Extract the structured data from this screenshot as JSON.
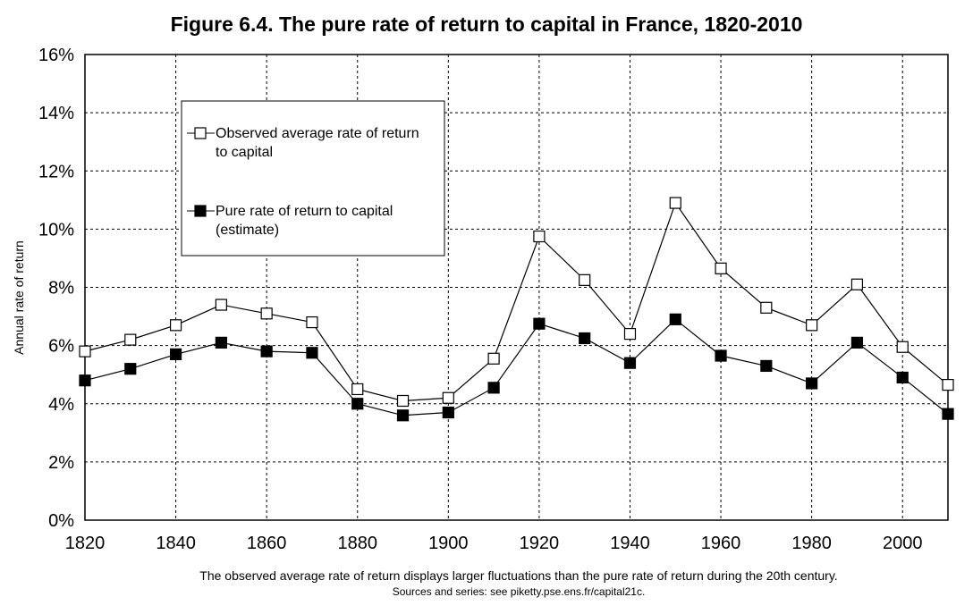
{
  "chart_data": {
    "type": "line",
    "title": "Figure 6.4. The pure rate of return to capital in France, 1820-2010",
    "ylabel": "Annual rate of return",
    "xlabel": "",
    "x": [
      1820,
      1830,
      1840,
      1850,
      1860,
      1870,
      1880,
      1890,
      1900,
      1910,
      1920,
      1930,
      1940,
      1950,
      1960,
      1970,
      1980,
      1990,
      2000,
      2010
    ],
    "xlim": [
      1820,
      2010
    ],
    "ylim": [
      0,
      16
    ],
    "x_ticks": [
      "1820",
      "1840",
      "1860",
      "1880",
      "1900",
      "1920",
      "1940",
      "1960",
      "1980",
      "2000"
    ],
    "y_ticks": [
      "0%",
      "2%",
      "4%",
      "6%",
      "8%",
      "10%",
      "12%",
      "14%",
      "16%"
    ],
    "grid": true,
    "legend_position": "top-left",
    "series": [
      {
        "name": "Observed average rate of return to capital",
        "legend_lines": [
          "Observed average rate of return",
          "to capital"
        ],
        "marker": "open-square",
        "values": [
          5.8,
          6.2,
          6.7,
          7.4,
          7.1,
          6.8,
          4.5,
          4.1,
          4.2,
          5.55,
          9.75,
          8.25,
          6.4,
          10.9,
          8.65,
          7.3,
          6.7,
          8.1,
          5.95,
          4.65
        ]
      },
      {
        "name": "Pure rate of return to capital (estimate)",
        "legend_lines": [
          "Pure rate of return to capital",
          "(estimate)"
        ],
        "marker": "filled-square",
        "values": [
          4.8,
          5.2,
          5.7,
          6.1,
          5.8,
          5.75,
          4.0,
          3.6,
          3.7,
          4.55,
          6.75,
          6.25,
          5.4,
          6.9,
          5.65,
          5.3,
          4.7,
          6.1,
          4.9,
          3.65
        ]
      }
    ],
    "note": "The observed average rate of return displays larger fluctuations than the pure rate of return during the 20th century.",
    "sources": "Sources and series: see piketty.pse.ens.fr/capital21c."
  }
}
